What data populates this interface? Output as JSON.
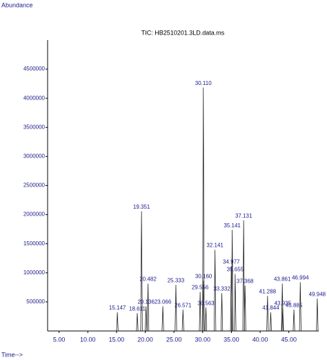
{
  "chart_data": {
    "type": "peaks",
    "title": "TIC: HB2510201.3LD.data.ms",
    "y_label": "Abundance",
    "x_label": "Time-->",
    "xlim": [
      3,
      50.2
    ],
    "xticks": [
      {
        "value": 5,
        "label": "5.00"
      },
      {
        "value": 10,
        "label": "10.00"
      },
      {
        "value": 15,
        "label": "15.00"
      },
      {
        "value": 20,
        "label": "20.00"
      },
      {
        "value": 25,
        "label": "25.00"
      },
      {
        "value": 30,
        "label": "30.00"
      },
      {
        "value": 35,
        "label": "35.00"
      },
      {
        "value": 40,
        "label": "40.00"
      },
      {
        "value": 45,
        "label": "45.00"
      }
    ],
    "ylim": [
      0,
      5000000
    ],
    "yticks": [
      500000,
      1000000,
      1500000,
      2000000,
      2500000,
      3000000,
      3500000,
      4000000,
      4500000
    ],
    "color": "#222222",
    "label_color": "#1a1a8c",
    "x": [
      15.147,
      18.611,
      19.351,
      20.136,
      20.482,
      23.066,
      25.333,
      26.571,
      29.556,
      30.11,
      30.16,
      30.563,
      32.141,
      33.332,
      34.977,
      35.141,
      35.655,
      37.131,
      37.368,
      41.288,
      41.844,
      43.861,
      43.935,
      45.885,
      46.994,
      49.948
    ],
    "x_labels": [
      "15.147",
      "18.611",
      "19.351",
      "20.136",
      "20.482",
      "23.066",
      "25.333",
      "26.571",
      "29.556",
      "30.110",
      "30.160",
      "30.563",
      "32.141",
      "33.332",
      "34.977",
      "35.141",
      "35.655",
      "37.131",
      "37.368",
      "41.288",
      "41.844",
      "43.861",
      "43.935",
      "45.885",
      "46.994",
      "49.948"
    ],
    "values": [
      320000,
      307000,
      2057000,
      425000,
      815000,
      425000,
      792000,
      366000,
      674000,
      4184000,
      863000,
      402000,
      1395000,
      650000,
      1111000,
      1738000,
      981000,
      1903000,
      780000,
      603000,
      320000,
      815000,
      402000,
      366000,
      839000,
      556000
    ]
  }
}
